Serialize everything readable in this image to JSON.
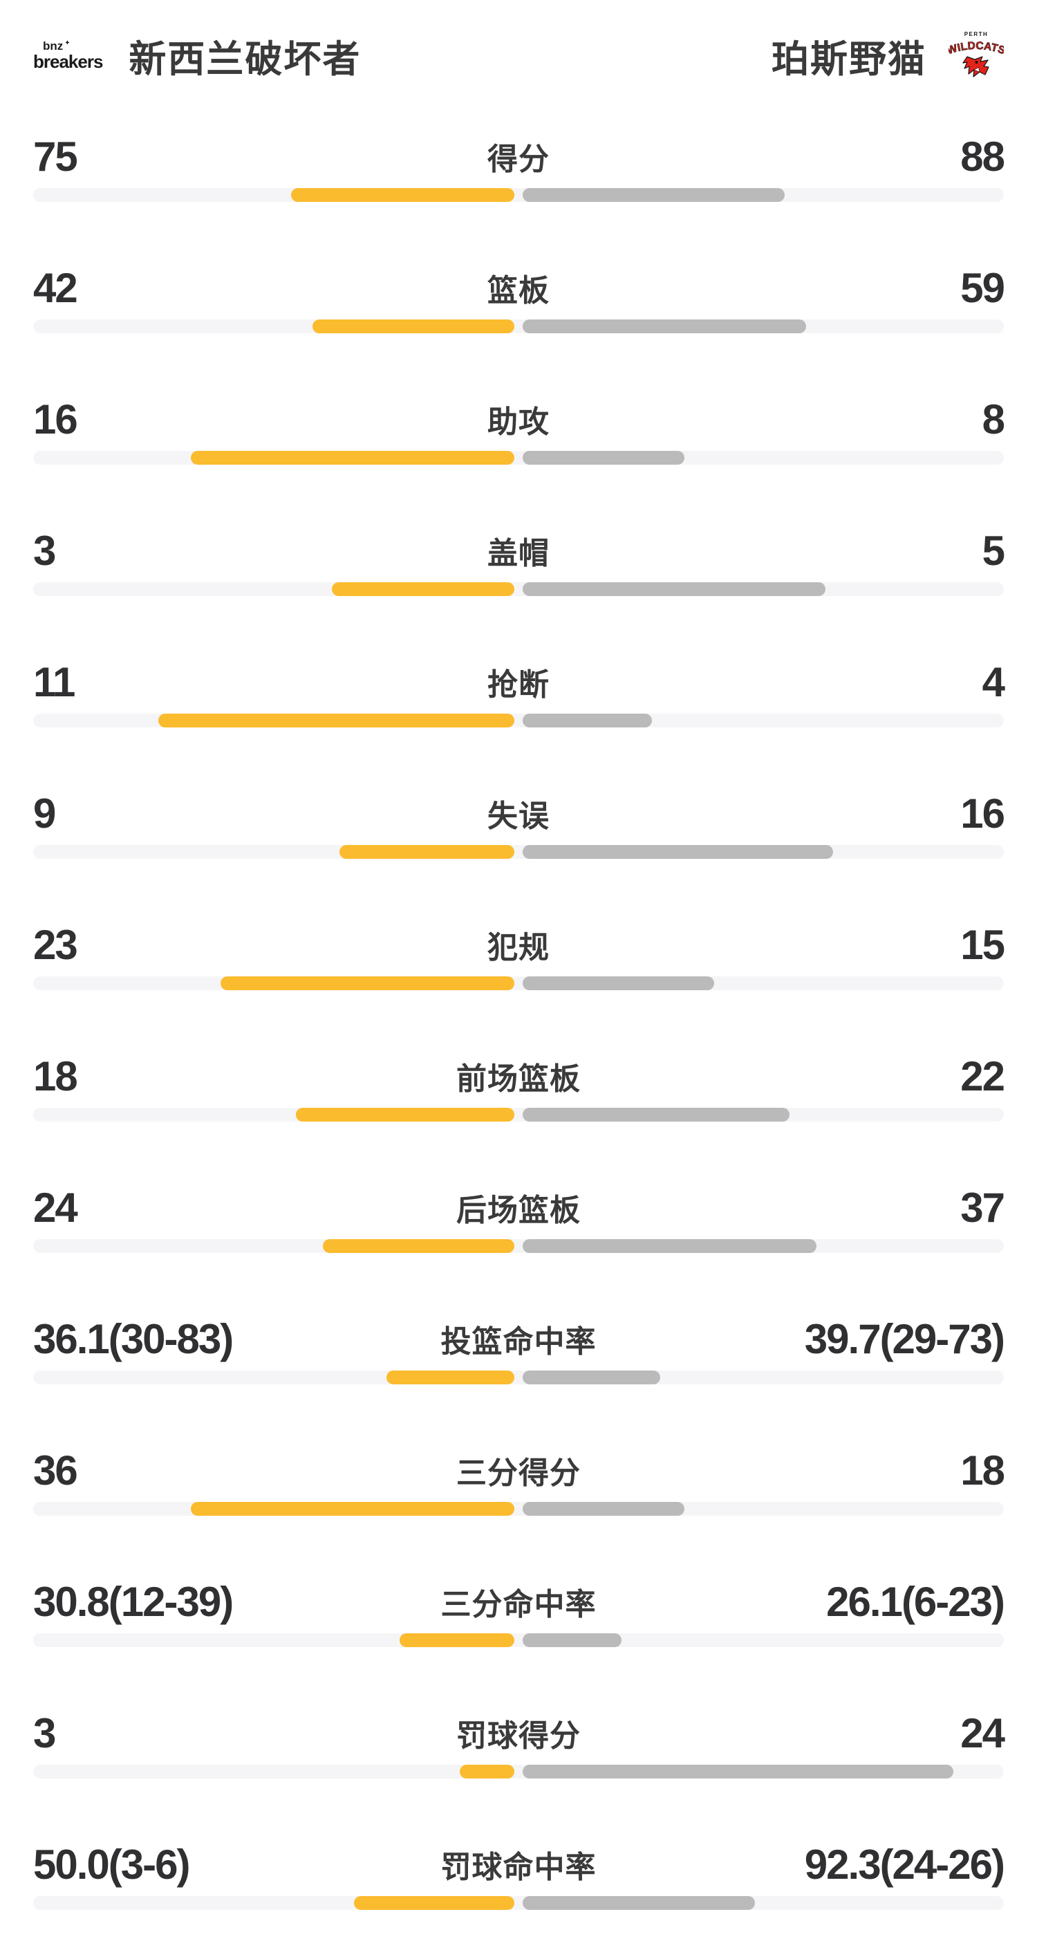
{
  "header": {
    "home_team": "新西兰破坏者",
    "away_team": "珀斯野猫",
    "home_logo": {
      "line1": "bnz",
      "line2": "breakers"
    },
    "away_logo": {
      "top": "PERTH",
      "main": "WILDCATS"
    }
  },
  "colors": {
    "home_bar": "#FBBB2E",
    "away_bar": "#BABABA",
    "track": "#F5F5F7",
    "text": "#333333",
    "wildcats_red": "#E2231A",
    "background": "#FFFFFF"
  },
  "rows": [
    {
      "label": "得分",
      "left": "75",
      "right": "88",
      "left_bar_pct": 23.0,
      "right_bar_pct": 27.0
    },
    {
      "label": "篮板",
      "left": "42",
      "right": "59",
      "left_bar_pct": 20.8,
      "right_bar_pct": 29.2
    },
    {
      "label": "助攻",
      "left": "16",
      "right": "8",
      "left_bar_pct": 33.3,
      "right_bar_pct": 16.7
    },
    {
      "label": "盖帽",
      "left": "3",
      "right": "5",
      "left_bar_pct": 18.8,
      "right_bar_pct": 31.2
    },
    {
      "label": "抢断",
      "left": "11",
      "right": "4",
      "left_bar_pct": 36.7,
      "right_bar_pct": 13.3
    },
    {
      "label": "失误",
      "left": "9",
      "right": "16",
      "left_bar_pct": 18.0,
      "right_bar_pct": 32.0
    },
    {
      "label": "犯规",
      "left": "23",
      "right": "15",
      "left_bar_pct": 30.3,
      "right_bar_pct": 19.7
    },
    {
      "label": "前场篮板",
      "left": "18",
      "right": "22",
      "left_bar_pct": 22.5,
      "right_bar_pct": 27.5
    },
    {
      "label": "后场篮板",
      "left": "24",
      "right": "37",
      "left_bar_pct": 19.7,
      "right_bar_pct": 30.3
    },
    {
      "label": "投篮命中率",
      "left": "36.1(30-83)",
      "right": "39.7(29-73)",
      "left_bar_pct": 13.2,
      "right_bar_pct": 14.2
    },
    {
      "label": "三分得分",
      "left": "36",
      "right": "18",
      "left_bar_pct": 33.3,
      "right_bar_pct": 16.7
    },
    {
      "label": "三分命中率",
      "left": "30.8(12-39)",
      "right": "26.1(6-23)",
      "left_bar_pct": 11.8,
      "right_bar_pct": 10.2
    },
    {
      "label": "罚球得分",
      "left": "3",
      "right": "24",
      "left_bar_pct": 5.6,
      "right_bar_pct": 44.4
    },
    {
      "label": "罚球命中率",
      "left": "50.0(3-6)",
      "right": "92.3(24-26)",
      "left_bar_pct": 16.5,
      "right_bar_pct": 23.9
    }
  ],
  "chart_data": {
    "type": "bar",
    "variant": "paired-horizontal-comparison",
    "title": "新西兰破坏者 vs 珀斯野猫",
    "categories": [
      "得分",
      "篮板",
      "助攻",
      "盖帽",
      "抢断",
      "失误",
      "犯规",
      "前场篮板",
      "后场篮板",
      "投篮命中率",
      "三分得分",
      "三分命中率",
      "罚球得分",
      "罚球命中率"
    ],
    "series": [
      {
        "name": "新西兰破坏者",
        "color": "#FBBB2E",
        "values": [
          75,
          42,
          16,
          3,
          11,
          9,
          23,
          18,
          24,
          36.1,
          36,
          30.8,
          3,
          50.0
        ],
        "display": [
          "75",
          "42",
          "16",
          "3",
          "11",
          "9",
          "23",
          "18",
          "24",
          "36.1(30-83)",
          "36",
          "30.8(12-39)",
          "3",
          "50.0(3-6)"
        ]
      },
      {
        "name": "珀斯野猫",
        "color": "#BABABA",
        "values": [
          88,
          59,
          8,
          5,
          4,
          16,
          15,
          22,
          37,
          39.7,
          18,
          26.1,
          24,
          92.3
        ],
        "display": [
          "88",
          "59",
          "8",
          "5",
          "4",
          "16",
          "15",
          "22",
          "37",
          "39.7(29-73)",
          "18",
          "26.1(6-23)",
          "24",
          "92.3(24-26)"
        ]
      }
    ],
    "legend_position": "header",
    "grid": false,
    "bars_origin": "center",
    "bar_scale_note": "count rows: width = value/(left+right) of half track; pct rows scaled smaller"
  }
}
